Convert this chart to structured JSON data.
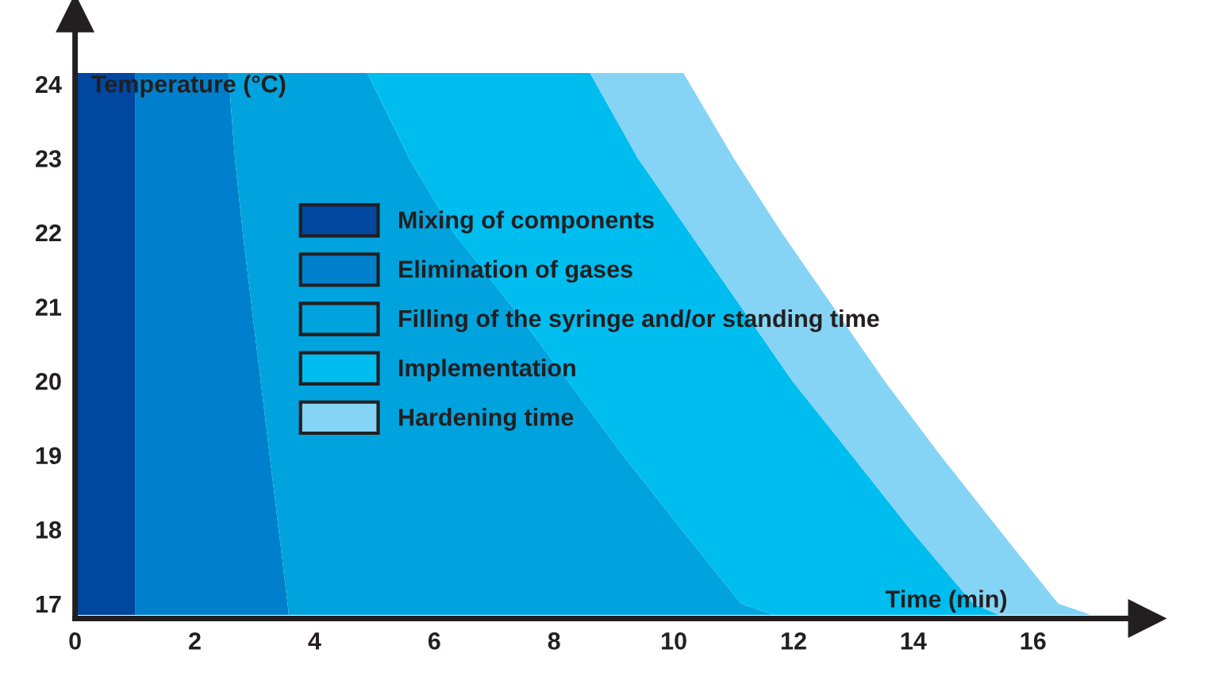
{
  "chart_data": {
    "type": "area",
    "orientation": "horizontal",
    "stacked": true,
    "xlabel": "Time (min)",
    "ylabel": "Temperature (°C)",
    "x": [
      16.85,
      17,
      18,
      19,
      20,
      21,
      22,
      23,
      24.15
    ],
    "series": [
      {
        "name": "Mixing of components",
        "color": "#0047a0",
        "values": [
          1,
          1,
          1,
          1,
          1,
          1,
          1,
          1,
          1
        ]
      },
      {
        "name": "Elimination of gases",
        "color": "#0080cc",
        "values": [
          2.57,
          2.55,
          2.4,
          2.25,
          2.1,
          1.95,
          1.8,
          1.67,
          1.56
        ]
      },
      {
        "name": "Filling of the syringe and/or standing time",
        "color": "#00a3dd",
        "values": [
          8.1,
          7.57,
          6.73,
          5.9,
          5.13,
          4.35,
          3.52,
          2.91,
          2.32
        ]
      },
      {
        "name": "Implementation",
        "color": "#00bdf0",
        "values": [
          3.76,
          3.88,
          3.82,
          3.82,
          3.75,
          3.82,
          3.94,
          3.82,
          3.72
        ]
      },
      {
        "name": "Hardening time",
        "color": "#85d4f5",
        "values": [
          1.54,
          1.42,
          1.48,
          1.48,
          1.54,
          1.54,
          1.54,
          1.6,
          1.56
        ]
      }
    ],
    "xlim": [
      0,
      17.9
    ],
    "xticks": [
      0,
      2,
      4,
      6,
      8,
      10,
      12,
      14,
      16
    ],
    "ylim": [
      16.8,
      24.95
    ],
    "yticks": [
      17,
      18,
      19,
      20,
      21,
      22,
      23,
      24
    ],
    "grid": false,
    "legend": "left"
  }
}
